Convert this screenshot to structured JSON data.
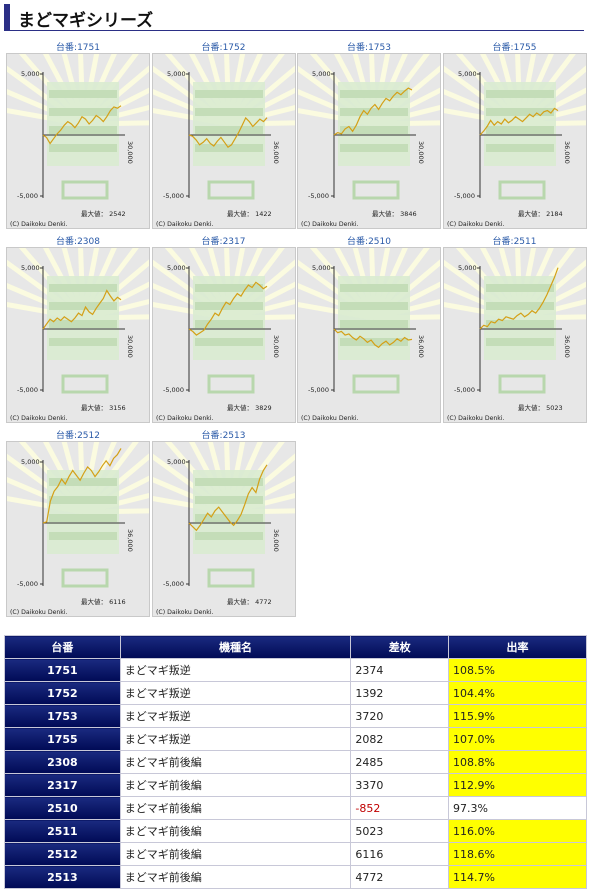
{
  "page": {
    "title": "まどマギシリーズ"
  },
  "common": {
    "ytick_top": "5,000",
    "ytick_bottom": "-5,000",
    "copyright": "(C) Daikoku Denki.",
    "max_prefix": "最大値："
  },
  "charts": [
    {
      "label": "台番:1751",
      "xtick": "30,000",
      "max_value": "2542",
      "series": [
        0,
        -200,
        -700,
        -300,
        100,
        400,
        800,
        1100,
        900,
        600,
        1000,
        1500,
        1300,
        900,
        1200,
        1600,
        1400,
        1100,
        1500,
        2000,
        2300,
        2200,
        2400
      ]
    },
    {
      "label": "台番:1752",
      "xtick": "36,000",
      "max_value": "1422",
      "series": [
        0,
        -100,
        -400,
        -800,
        -600,
        -300,
        -700,
        -900,
        -500,
        -200,
        -600,
        -1000,
        -800,
        -300,
        200,
        800,
        1400,
        1100,
        700,
        1000,
        1300,
        1100,
        1422
      ]
    },
    {
      "label": "台番:1753",
      "xtick": "30,000",
      "max_value": "3846",
      "series": [
        0,
        200,
        100,
        500,
        700,
        300,
        800,
        1500,
        2000,
        1700,
        2200,
        2500,
        2100,
        2600,
        3000,
        2800,
        3200,
        3500,
        3300,
        3600,
        3846,
        3700
      ]
    },
    {
      "label": "台番:1755",
      "xtick": "36,000",
      "max_value": "2184",
      "series": [
        0,
        300,
        700,
        1200,
        800,
        1100,
        900,
        1300,
        1000,
        1200,
        1500,
        1300,
        1100,
        1400,
        1700,
        1500,
        1800,
        1600,
        1900,
        2000,
        1800,
        2184,
        2000
      ]
    },
    {
      "label": "台番:2308",
      "xtick": "30,000",
      "max_value": "3156",
      "series": [
        0,
        400,
        800,
        600,
        900,
        700,
        1000,
        800,
        600,
        900,
        1300,
        1100,
        1800,
        1400,
        1200,
        1700,
        2100,
        2500,
        3156,
        2700,
        2300,
        2600,
        2400
      ]
    },
    {
      "label": "台番:2317",
      "xtick": "30,000",
      "max_value": "3829",
      "series": [
        0,
        -200,
        -500,
        -300,
        -100,
        400,
        800,
        1300,
        1100,
        1700,
        2200,
        2000,
        2500,
        2900,
        2700,
        3200,
        3600,
        3400,
        3829,
        3600,
        3300,
        3500
      ]
    },
    {
      "label": "台番:2510",
      "xtick": "36,000",
      "max_value": "",
      "series": [
        0,
        -300,
        -200,
        -500,
        -400,
        -700,
        -900,
        -600,
        -800,
        -1100,
        -900,
        -1300,
        -1500,
        -1200,
        -1000,
        -1300,
        -1100,
        -800,
        -1000,
        -700,
        -900,
        -852
      ]
    },
    {
      "label": "台番:2511",
      "xtick": "36,000",
      "max_value": "5023",
      "series": [
        0,
        300,
        200,
        600,
        500,
        800,
        700,
        1000,
        900,
        800,
        1100,
        1300,
        1000,
        1200,
        1500,
        1300,
        1700,
        2200,
        2800,
        3500,
        4200,
        5023
      ]
    },
    {
      "label": "台番:2512",
      "xtick": "36,000",
      "max_value": "6116",
      "series": [
        0,
        100,
        1800,
        2600,
        3000,
        3600,
        3200,
        3800,
        4300,
        3900,
        3500,
        4100,
        4600,
        4300,
        3800,
        4200,
        4700,
        5100,
        4700,
        5300,
        5600,
        6116
      ]
    },
    {
      "label": "台番:2513",
      "xtick": "36,000",
      "max_value": "4772",
      "series": [
        0,
        -300,
        -600,
        -200,
        300,
        800,
        500,
        1000,
        1300,
        900,
        500,
        100,
        -200,
        200,
        700,
        1500,
        2400,
        2900,
        2500,
        3600,
        4300,
        4772
      ]
    }
  ],
  "table": {
    "headers": [
      "台番",
      "機種名",
      "差枚",
      "出率"
    ],
    "rows": [
      {
        "no": "1751",
        "name": "まどマギ叛逆",
        "diff": "2374",
        "rate": "108.5%"
      },
      {
        "no": "1752",
        "name": "まどマギ叛逆",
        "diff": "1392",
        "rate": "104.4%"
      },
      {
        "no": "1753",
        "name": "まどマギ叛逆",
        "diff": "3720",
        "rate": "115.9%"
      },
      {
        "no": "1755",
        "name": "まどマギ叛逆",
        "diff": "2082",
        "rate": "107.0%"
      },
      {
        "no": "2308",
        "name": "まどマギ前後編",
        "diff": "2485",
        "rate": "108.8%"
      },
      {
        "no": "2317",
        "name": "まどマギ前後編",
        "diff": "3370",
        "rate": "112.9%"
      },
      {
        "no": "2510",
        "name": "まどマギ前後編",
        "diff": "-852",
        "rate": "97.3%"
      },
      {
        "no": "2511",
        "name": "まどマギ前後編",
        "diff": "5023",
        "rate": "116.0%"
      },
      {
        "no": "2512",
        "name": "まどマギ前後編",
        "diff": "6116",
        "rate": "118.6%"
      },
      {
        "no": "2513",
        "name": "まどマギ前後編",
        "diff": "4772",
        "rate": "114.7%"
      }
    ]
  },
  "colors": {
    "header_accent": "#2b2f86",
    "line": "#d4a017",
    "rate_highlight": "#ffff00",
    "negative": "#c00000"
  }
}
